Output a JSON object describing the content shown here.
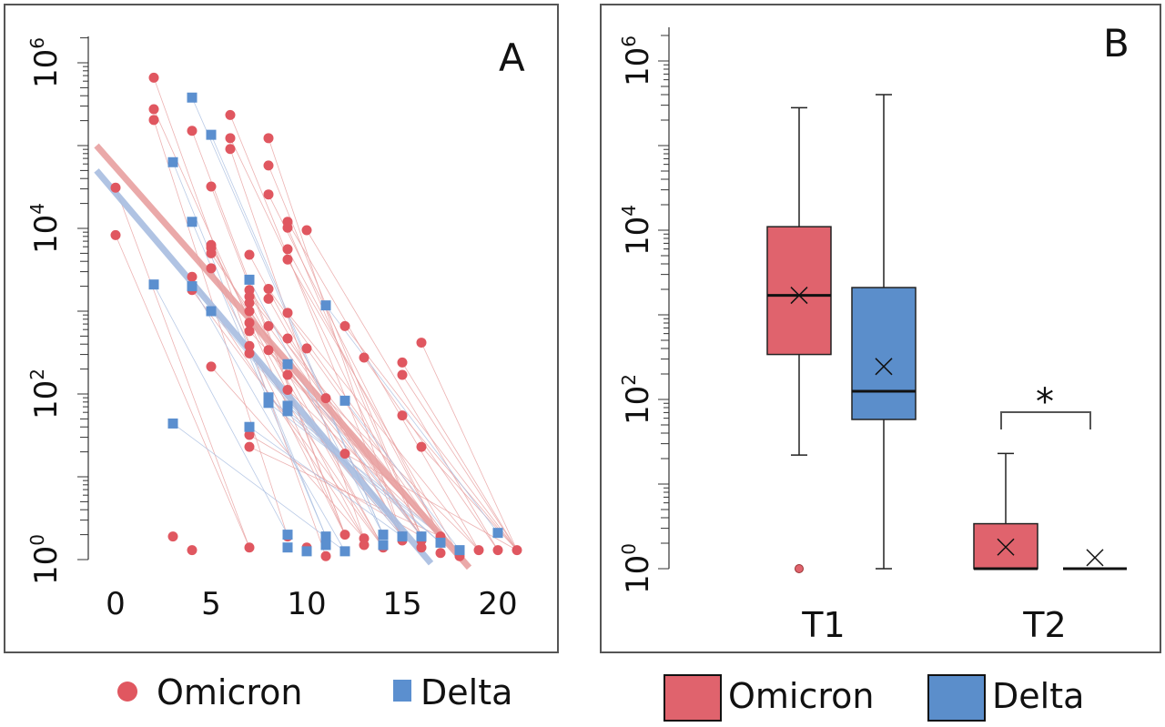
{
  "chart_data": [
    {
      "type": "scatter",
      "panel_label": "A",
      "y_scale": "log",
      "ylim": [
        0.9,
        2000000
      ],
      "xlim": [
        -1,
        21.5
      ],
      "x_ticks": [
        "0",
        "5",
        "10",
        "15",
        "20"
      ],
      "x_tick_values": [
        0,
        5,
        10,
        15,
        20
      ],
      "y_ticks": [
        {
          "base": "10",
          "exp": "6",
          "value": 1000000
        },
        {
          "base": "10",
          "exp": "4",
          "value": 10000
        },
        {
          "base": "10",
          "exp": "2",
          "value": 100
        },
        {
          "base": "10",
          "exp": "0",
          "value": 1
        }
      ],
      "grid": false,
      "legend_position": "bottom",
      "series": [
        {
          "name": "Omicron",
          "marker": "circle",
          "color": "#e05760",
          "trend_color": "#e8a0a0",
          "trend": [
            [
              -1,
              100000
            ],
            [
              18.5,
              0.8
            ]
          ],
          "points": [
            [
              0,
              31000
            ],
            [
              0,
              8300
            ],
            [
              2,
              660000
            ],
            [
              2,
              275000
            ],
            [
              2,
              204000
            ],
            [
              3,
              1.9
            ],
            [
              4,
              151000
            ],
            [
              4,
              2600
            ],
            [
              4,
              1800
            ],
            [
              4,
              1.3
            ],
            [
              5,
              32000
            ],
            [
              5,
              6300
            ],
            [
              5,
              5800
            ],
            [
              5,
              5000
            ],
            [
              5,
              3300
            ],
            [
              5,
              214
            ],
            [
              6,
              234000
            ],
            [
              6,
              123000
            ],
            [
              6,
              91000
            ],
            [
              7,
              4800
            ],
            [
              7,
              1800
            ],
            [
              7,
              1500
            ],
            [
              7,
              1260
            ],
            [
              7,
              1000
            ],
            [
              7,
              724
            ],
            [
              7,
              575
            ],
            [
              7,
              380
            ],
            [
              7,
              309
            ],
            [
              7,
              32
            ],
            [
              7,
              23
            ],
            [
              7,
              1.4
            ],
            [
              8,
              123000
            ],
            [
              8,
              57500
            ],
            [
              8,
              25700
            ],
            [
              8,
              1860
            ],
            [
              8,
              1410
            ],
            [
              8,
              660
            ],
            [
              8,
              339
            ],
            [
              9,
              12000
            ],
            [
              9,
              10200
            ],
            [
              9,
              5600
            ],
            [
              9,
              4200
            ],
            [
              9,
              955
            ],
            [
              9,
              468
            ],
            [
              9,
              170
            ],
            [
              9,
              112
            ],
            [
              9,
              1.9
            ],
            [
              10,
              9500
            ],
            [
              10,
              355
            ],
            [
              10,
              1.4
            ],
            [
              11,
              89
            ],
            [
              11,
              1.1
            ],
            [
              12,
              660
            ],
            [
              12,
              19
            ],
            [
              12,
              2
            ],
            [
              13,
              275
            ],
            [
              13,
              1.8
            ],
            [
              13,
              1.5
            ],
            [
              14,
              1.4
            ],
            [
              15,
              240
            ],
            [
              15,
              170
            ],
            [
              15,
              55
            ],
            [
              15,
              1.9
            ],
            [
              15,
              1.7
            ],
            [
              16,
              417
            ],
            [
              16,
              23
            ],
            [
              16,
              1.9
            ],
            [
              16,
              1.7
            ],
            [
              16,
              1.4
            ],
            [
              17,
              1.9
            ],
            [
              17,
              1.7
            ],
            [
              17,
              1.2
            ],
            [
              18,
              1.1
            ],
            [
              19,
              1.3
            ],
            [
              20,
              1.3
            ],
            [
              21,
              1.3
            ]
          ]
        },
        {
          "name": "Delta",
          "marker": "square",
          "color": "#5b8fcf",
          "trend_color": "#a8bde0",
          "trend": [
            [
              -1,
              50000
            ],
            [
              16.5,
              0.9
            ]
          ],
          "points": [
            [
              2,
              2100
            ],
            [
              3,
              63000
            ],
            [
              3,
              44
            ],
            [
              4,
              380000
            ],
            [
              4,
              12000
            ],
            [
              4,
              2000
            ],
            [
              5,
              135000
            ],
            [
              5,
              1000
            ],
            [
              7,
              2400
            ],
            [
              7,
              40
            ],
            [
              8,
              91
            ],
            [
              8,
              78
            ],
            [
              9,
              229
            ],
            [
              9,
              72
            ],
            [
              9,
              62
            ],
            [
              9,
              2
            ],
            [
              9,
              1.4
            ],
            [
              10,
              1.26
            ],
            [
              11,
              1175
            ],
            [
              11,
              1.9
            ],
            [
              11,
              1.5
            ],
            [
              12,
              83
            ],
            [
              12,
              1.26
            ],
            [
              14,
              2
            ],
            [
              14,
              1.5
            ],
            [
              15,
              1.9
            ],
            [
              16,
              1.9
            ],
            [
              17,
              1.6
            ],
            [
              18,
              1.3
            ],
            [
              20,
              2.1
            ]
          ]
        }
      ]
    },
    {
      "type": "box",
      "panel_label": "B",
      "y_scale": "log",
      "categories": [
        "T1",
        "T2"
      ],
      "y_ticks": [
        {
          "base": "10",
          "exp": "6",
          "value": 1000000
        },
        {
          "base": "10",
          "exp": "4",
          "value": 10000
        },
        {
          "base": "10",
          "exp": "2",
          "value": 100
        },
        {
          "base": "10",
          "exp": "0",
          "value": 1
        }
      ],
      "grid": false,
      "legend_position": "bottom",
      "significance": {
        "label": "*",
        "category": "T2"
      },
      "series": [
        {
          "name": "Omicron",
          "color": "#e0636d",
          "boxes": [
            {
              "category": "T1",
              "whisker_low": 22,
              "q1": 340,
              "median": 1700,
              "q3": 11000,
              "whisker_high": 280000,
              "mean": 1700,
              "outliers": [
                1
              ]
            },
            {
              "category": "T2",
              "whisker_low": 1,
              "q1": 1,
              "median": 1,
              "q3": 3.4,
              "whisker_high": 23,
              "mean": 1.8,
              "outliers": []
            }
          ]
        },
        {
          "name": "Delta",
          "color": "#5b8ecb",
          "boxes": [
            {
              "category": "T1",
              "whisker_low": 1,
              "q1": 58,
              "median": 125,
              "q3": 2100,
              "whisker_high": 400000,
              "mean": 245,
              "outliers": []
            },
            {
              "category": "T2",
              "whisker_low": 1,
              "q1": 1,
              "median": 1,
              "q3": 1,
              "whisker_high": 1,
              "mean": 1.35,
              "outliers": []
            }
          ]
        }
      ]
    }
  ]
}
